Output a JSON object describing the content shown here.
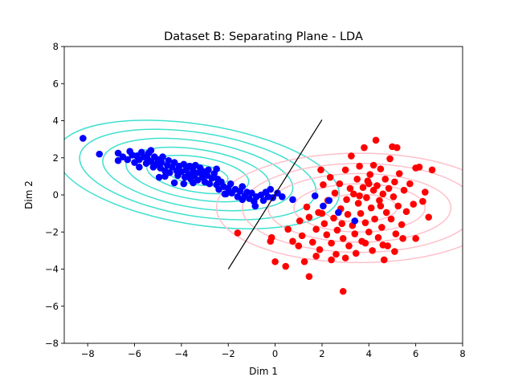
{
  "chart_data": {
    "type": "scatter",
    "title": "Dataset B: Separating Plane - LDA",
    "xlabel": "Dim 1",
    "ylabel": "Dim 2",
    "xlim": [
      -9,
      8
    ],
    "ylim": [
      -8,
      8
    ],
    "xticks": [
      -8,
      -6,
      -4,
      -2,
      0,
      2,
      4,
      6,
      8
    ],
    "yticks": [
      -8,
      -6,
      -4,
      -2,
      0,
      2,
      4,
      6,
      8
    ],
    "grid": false,
    "colors": {
      "class_a": "#0000ff",
      "class_b": "#ff0000",
      "contour_a": "#40e0d0",
      "contour_b": "#ffc0cb",
      "boundary": "#000000"
    },
    "boundary_line": {
      "x": [
        -2,
        2
      ],
      "y": [
        -4,
        4.05
      ]
    },
    "contours": [
      {
        "name": "class-a-contours",
        "center": [
          -3.3,
          1.1
        ],
        "angle_deg": -9,
        "rx": [
          1.3,
          2.2,
          3.1,
          4.1,
          5.1,
          6.1
        ],
        "ry": [
          0.55,
          0.95,
          1.35,
          1.8,
          2.25,
          2.7
        ]
      },
      {
        "name": "class-b-contours",
        "center": [
          3.6,
          -0.7
        ],
        "angle_deg": 0,
        "rx": [
          1.6,
          2.8,
          3.9,
          5.0,
          6.1
        ],
        "ry": [
          0.75,
          1.3,
          1.85,
          2.4,
          2.95
        ]
      }
    ],
    "series": [
      {
        "points": [
          [
            -8.2,
            3.05
          ],
          [
            -7.5,
            2.2
          ],
          [
            -6.7,
            2.25
          ],
          [
            -6.5,
            2.05
          ],
          [
            -6.3,
            1.9
          ],
          [
            -6.2,
            2.35
          ],
          [
            -6.1,
            2.15
          ],
          [
            -6.0,
            1.75
          ],
          [
            -5.9,
            2.1
          ],
          [
            -5.8,
            1.9
          ],
          [
            -5.7,
            2.3
          ],
          [
            -5.6,
            2.05
          ],
          [
            -5.5,
            1.7
          ],
          [
            -5.45,
            1.95
          ],
          [
            -5.4,
            2.25
          ],
          [
            -5.3,
            1.8
          ],
          [
            -5.2,
            1.5
          ],
          [
            -5.15,
            2.05
          ],
          [
            -5.1,
            1.65
          ],
          [
            -5.0,
            1.9
          ],
          [
            -4.9,
            1.45
          ],
          [
            -4.85,
            1.75
          ],
          [
            -4.8,
            2.05
          ],
          [
            -4.7,
            1.3
          ],
          [
            -4.6,
            1.6
          ],
          [
            -4.55,
            1.85
          ],
          [
            -4.5,
            1.2
          ],
          [
            -4.4,
            1.5
          ],
          [
            -4.3,
            1.75
          ],
          [
            -4.2,
            1.3
          ],
          [
            -4.15,
            1.05
          ],
          [
            -4.1,
            1.55
          ],
          [
            -4.0,
            1.25
          ],
          [
            -3.9,
            1.65
          ],
          [
            -3.85,
            0.95
          ],
          [
            -3.8,
            1.35
          ],
          [
            -3.7,
            1.1
          ],
          [
            -3.65,
            1.55
          ],
          [
            -3.6,
            0.85
          ],
          [
            -3.5,
            1.3
          ],
          [
            -3.45,
            1.05
          ],
          [
            -3.4,
            1.6
          ],
          [
            -3.3,
            0.8
          ],
          [
            -3.25,
            1.2
          ],
          [
            -3.2,
            1.45
          ],
          [
            -3.1,
            0.95
          ],
          [
            -3.05,
            1.25
          ],
          [
            -3.0,
            0.7
          ],
          [
            -2.9,
            1.05
          ],
          [
            -2.85,
            1.35
          ],
          [
            -2.8,
            0.6
          ],
          [
            -2.7,
            0.9
          ],
          [
            -2.6,
            1.15
          ],
          [
            -2.5,
            0.55
          ],
          [
            -2.45,
            0.85
          ],
          [
            -2.4,
            0.3
          ],
          [
            -2.3,
            0.7
          ],
          [
            -2.2,
            0.45
          ],
          [
            -2.15,
            0.05
          ],
          [
            -2.0,
            0.35
          ],
          [
            -1.9,
            0.6
          ],
          [
            -1.85,
            0.1
          ],
          [
            -1.7,
            0.3
          ],
          [
            -1.6,
            -0.1
          ],
          [
            -1.5,
            0.2
          ],
          [
            -1.4,
            0.45
          ],
          [
            -1.3,
            -0.05
          ],
          [
            -1.2,
            0.15
          ],
          [
            -1.1,
            -0.2
          ],
          [
            -1.0,
            0.1
          ],
          [
            -0.9,
            -0.35
          ],
          [
            -0.8,
            -0.1
          ],
          [
            -0.6,
            0.0
          ],
          [
            -0.5,
            -0.3
          ],
          [
            -0.4,
            0.15
          ],
          [
            -0.3,
            -0.1
          ],
          [
            -0.1,
            -0.15
          ],
          [
            0.1,
            0.1
          ],
          [
            -2.5,
            1.4
          ],
          [
            -4.95,
            0.95
          ],
          [
            -5.8,
            1.5
          ],
          [
            -4.3,
            0.65
          ],
          [
            -3.5,
            0.65
          ],
          [
            -0.85,
            -0.6
          ],
          [
            -2.1,
            0.05
          ],
          [
            -1.4,
            -0.25
          ],
          [
            -0.2,
            0.3
          ],
          [
            0.3,
            -0.1
          ],
          [
            -6.7,
            1.85
          ],
          [
            -5.3,
            2.4
          ],
          [
            0.75,
            -0.25
          ],
          [
            1.7,
            -0.05
          ],
          [
            2.05,
            -0.6
          ],
          [
            2.7,
            -0.95
          ],
          [
            3.4,
            -1.4
          ],
          [
            2.3,
            -0.3
          ],
          [
            -3.9,
            0.6
          ],
          [
            -4.7,
            1.0
          ]
        ]
      },
      {
        "points": [
          [
            -1.6,
            -2.05
          ],
          [
            -0.2,
            -2.5
          ],
          [
            -0.15,
            -2.3
          ],
          [
            0.0,
            -3.6
          ],
          [
            0.55,
            -1.85
          ],
          [
            0.75,
            -2.5
          ],
          [
            1.05,
            -1.4
          ],
          [
            1.15,
            -2.2
          ],
          [
            1.25,
            -3.6
          ],
          [
            1.45,
            -4.4
          ],
          [
            1.35,
            -0.65
          ],
          [
            1.45,
            -1.2
          ],
          [
            1.6,
            -2.55
          ],
          [
            1.75,
            -3.3
          ],
          [
            1.75,
            -1.85
          ],
          [
            1.85,
            -0.95
          ],
          [
            1.9,
            -2.95
          ],
          [
            1.95,
            1.35
          ],
          [
            2.05,
            0.55
          ],
          [
            2.1,
            -1.55
          ],
          [
            2.2,
            -2.15
          ],
          [
            2.25,
            -0.3
          ],
          [
            2.35,
            0.95
          ],
          [
            2.4,
            -2.6
          ],
          [
            2.5,
            -1.25
          ],
          [
            2.55,
            0.1
          ],
          [
            2.6,
            -3.2
          ],
          [
            2.65,
            -1.9
          ],
          [
            2.75,
            0.6
          ],
          [
            2.8,
            -0.75
          ],
          [
            2.85,
            -1.55
          ],
          [
            2.9,
            -2.35
          ],
          [
            2.9,
            -5.2
          ],
          [
            3.0,
            1.35
          ],
          [
            3.05,
            -0.25
          ],
          [
            3.1,
            -1.05
          ],
          [
            3.15,
            -2.75
          ],
          [
            3.2,
            0.35
          ],
          [
            3.25,
            2.1
          ],
          [
            3.3,
            -1.65
          ],
          [
            3.35,
            0.05
          ],
          [
            3.4,
            -2.1
          ],
          [
            3.45,
            -3.15
          ],
          [
            3.5,
            0.85
          ],
          [
            3.55,
            -0.45
          ],
          [
            3.6,
            1.55
          ],
          [
            3.65,
            -1.0
          ],
          [
            3.7,
            -2.5
          ],
          [
            3.75,
            0.4
          ],
          [
            3.8,
            2.55
          ],
          [
            3.85,
            -1.5
          ],
          [
            3.9,
            -0.15
          ],
          [
            3.95,
            0.75
          ],
          [
            4.0,
            -2.0
          ],
          [
            4.05,
            1.1
          ],
          [
            4.1,
            -0.7
          ],
          [
            4.15,
            -3.0
          ],
          [
            4.2,
            0.25
          ],
          [
            4.25,
            -1.3
          ],
          [
            4.3,
            2.95
          ],
          [
            4.35,
            0.5
          ],
          [
            4.4,
            -2.3
          ],
          [
            4.45,
            -0.3
          ],
          [
            4.5,
            1.4
          ],
          [
            4.55,
            -1.75
          ],
          [
            4.6,
            0.05
          ],
          [
            4.65,
            -3.5
          ],
          [
            4.7,
            0.85
          ],
          [
            4.75,
            -0.95
          ],
          [
            4.8,
            -2.75
          ],
          [
            4.85,
            0.35
          ],
          [
            4.9,
            1.95
          ],
          [
            4.95,
            -1.3
          ],
          [
            5.0,
            2.6
          ],
          [
            5.05,
            -0.1
          ],
          [
            5.1,
            0.7
          ],
          [
            5.15,
            -2.1
          ],
          [
            5.2,
            2.55
          ],
          [
            5.25,
            -0.6
          ],
          [
            5.3,
            1.15
          ],
          [
            5.4,
            -1.6
          ],
          [
            5.5,
            0.25
          ],
          [
            5.6,
            -0.9
          ],
          [
            5.75,
            0.6
          ],
          [
            5.9,
            -0.5
          ],
          [
            6.0,
            1.45
          ],
          [
            6.15,
            1.5
          ],
          [
            6.3,
            -0.35
          ],
          [
            6.4,
            0.15
          ],
          [
            6.55,
            -1.2
          ],
          [
            6.7,
            1.35
          ],
          [
            6.0,
            -2.35
          ],
          [
            5.1,
            -3.05
          ],
          [
            4.6,
            -2.7
          ],
          [
            3.85,
            -2.6
          ],
          [
            3.0,
            -3.4
          ],
          [
            2.4,
            -3.5
          ],
          [
            1.0,
            -2.75
          ],
          [
            0.45,
            -3.85
          ],
          [
            5.45,
            -2.35
          ],
          [
            4.0,
            0.6
          ],
          [
            3.6,
            -0.05
          ],
          [
            4.5,
            -0.6
          ],
          [
            4.2,
            1.6
          ],
          [
            2.0,
            -1.0
          ]
        ]
      }
    ]
  }
}
